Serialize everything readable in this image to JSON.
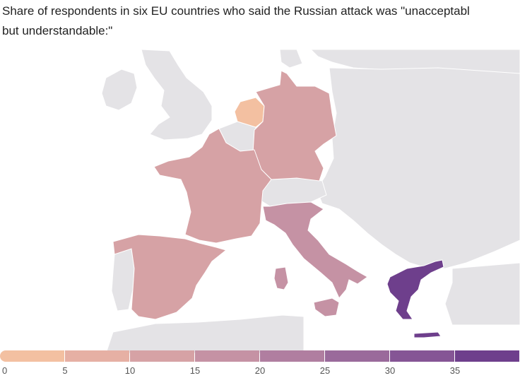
{
  "title_lines": [
    "Share of respondents in six EU countries who said the Russian attack was \"unacceptabl",
    "but understandable:\""
  ],
  "legend": {
    "colors": [
      "#f3c0a1",
      "#e6b0a4",
      "#d6a2a5",
      "#c592a4",
      "#b07ea0",
      "#9a6a9b",
      "#855595",
      "#6e3f8c"
    ],
    "ticks": [
      "0",
      "5",
      "10",
      "15",
      "20",
      "25",
      "30",
      "35"
    ],
    "max": 40
  },
  "map_colors": {
    "land": "#e4e3e6",
    "border": "#ffffff",
    "water": "#ffffff"
  },
  "chart_data": {
    "type": "choropleth",
    "title": "Share of respondents in six EU countries who said the Russian attack was \"unacceptabl but understandable:\"",
    "scale": {
      "min": 0,
      "max": 40,
      "step": 5
    },
    "regions": [
      {
        "name": "Netherlands",
        "value": 4
      },
      {
        "name": "Germany",
        "value": 14
      },
      {
        "name": "France",
        "value": 14
      },
      {
        "name": "Spain",
        "value": 14
      },
      {
        "name": "Italy",
        "value": 19
      },
      {
        "name": "Greece",
        "value": 36
      }
    ]
  }
}
